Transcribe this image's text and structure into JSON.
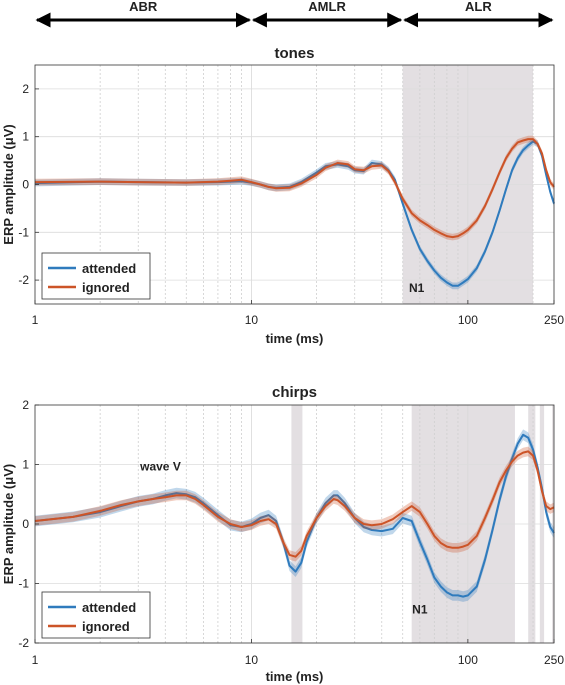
{
  "header": {
    "regions": [
      {
        "label": "ABR",
        "from": 1,
        "to": 10
      },
      {
        "label": "AMLR",
        "from": 10,
        "to": 50
      },
      {
        "label": "ALR",
        "from": 50,
        "to": 250
      }
    ]
  },
  "colors": {
    "attended": "#2f7bbd",
    "ignored": "#cc5428",
    "shade": "#e3dfe2"
  },
  "chart_data": [
    {
      "type": "line",
      "title": "tones",
      "xlabel": "time (ms)",
      "ylabel": "ERP amplitude (μV)",
      "xscale": "log",
      "xlim": [
        1,
        250
      ],
      "ylim": [
        -2.5,
        2.5
      ],
      "xticks": [
        1,
        10,
        100,
        250
      ],
      "yticks": [
        -2,
        -1,
        0,
        1,
        2
      ],
      "legend": "bottom-left",
      "annotations": [
        {
          "text": "N1",
          "x": 58,
          "y": -2.25
        }
      ],
      "shaded_x": [
        [
          50,
          200
        ]
      ],
      "series": [
        {
          "name": "attended",
          "color": "#2f7bbd",
          "ci": 0.07,
          "x": [
            1,
            2,
            3,
            5,
            7,
            8,
            9,
            10,
            11,
            12,
            13,
            15,
            17,
            20,
            22,
            25,
            28,
            30,
            33,
            36,
            40,
            43,
            46,
            50,
            55,
            60,
            65,
            70,
            75,
            80,
            85,
            90,
            95,
            100,
            110,
            120,
            130,
            140,
            150,
            160,
            170,
            180,
            190,
            200,
            210,
            220,
            230,
            240,
            250
          ],
          "y": [
            0.03,
            0.06,
            0.05,
            0.04,
            0.05,
            0.06,
            0.07,
            0.04,
            0.0,
            -0.05,
            -0.07,
            -0.05,
            0.05,
            0.25,
            0.38,
            0.42,
            0.38,
            0.3,
            0.28,
            0.45,
            0.42,
            0.3,
            0.1,
            -0.4,
            -0.95,
            -1.35,
            -1.6,
            -1.8,
            -1.95,
            -2.05,
            -2.12,
            -2.12,
            -2.05,
            -1.98,
            -1.75,
            -1.4,
            -1.0,
            -0.55,
            -0.1,
            0.3,
            0.55,
            0.72,
            0.82,
            0.9,
            0.85,
            0.6,
            0.2,
            -0.15,
            -0.4
          ]
        },
        {
          "name": "ignored",
          "color": "#cc5428",
          "ci": 0.07,
          "x": [
            1,
            2,
            3,
            5,
            7,
            8,
            9,
            10,
            11,
            12,
            13,
            15,
            17,
            20,
            22,
            25,
            28,
            30,
            33,
            36,
            40,
            43,
            46,
            50,
            55,
            60,
            65,
            70,
            75,
            80,
            85,
            90,
            95,
            100,
            110,
            120,
            130,
            140,
            150,
            160,
            170,
            180,
            190,
            200,
            210,
            220,
            230,
            240,
            250
          ],
          "y": [
            0.05,
            0.06,
            0.05,
            0.04,
            0.06,
            0.08,
            0.1,
            0.05,
            0.0,
            -0.05,
            -0.08,
            -0.07,
            0.02,
            0.2,
            0.35,
            0.45,
            0.42,
            0.32,
            0.3,
            0.38,
            0.4,
            0.28,
            0.05,
            -0.3,
            -0.6,
            -0.75,
            -0.85,
            -0.95,
            -1.02,
            -1.08,
            -1.1,
            -1.08,
            -1.02,
            -0.95,
            -0.75,
            -0.45,
            -0.1,
            0.25,
            0.55,
            0.75,
            0.88,
            0.92,
            0.95,
            0.95,
            0.85,
            0.65,
            0.3,
            0.05,
            -0.05
          ]
        }
      ]
    },
    {
      "type": "line",
      "title": "chirps",
      "xlabel": "time (ms)",
      "ylabel": "ERP amplitude (μV)",
      "xscale": "log",
      "xlim": [
        1,
        250
      ],
      "ylim": [
        -2,
        2
      ],
      "xticks": [
        1,
        10,
        100,
        250
      ],
      "yticks": [
        -2,
        -1,
        0,
        1,
        2
      ],
      "legend": "bottom-left",
      "annotations": [
        {
          "text": "wave V",
          "x": 3.8,
          "y": 0.9
        },
        {
          "text": "N1",
          "x": 60,
          "y": -1.5
        }
      ],
      "shaded_x": [
        [
          15.3,
          17.2
        ],
        [
          55,
          165
        ],
        [
          190,
          205
        ],
        [
          215,
          225
        ],
        [
          245,
          250
        ]
      ],
      "series": [
        {
          "name": "attended",
          "color": "#2f7bbd",
          "ci": 0.09,
          "x": [
            1,
            1.5,
            2,
            2.5,
            3,
            3.5,
            4,
            4.5,
            5,
            5.5,
            6,
            7,
            8,
            9,
            10,
            11,
            12,
            13,
            14,
            15,
            16,
            17,
            18,
            20,
            22,
            24,
            25,
            27,
            30,
            33,
            36,
            40,
            45,
            50,
            55,
            60,
            65,
            70,
            75,
            80,
            85,
            90,
            95,
            100,
            110,
            120,
            130,
            140,
            150,
            160,
            170,
            180,
            190,
            200,
            210,
            220,
            230,
            240,
            250
          ],
          "y": [
            0.05,
            0.12,
            0.2,
            0.3,
            0.38,
            0.42,
            0.48,
            0.52,
            0.5,
            0.45,
            0.35,
            0.15,
            -0.02,
            -0.05,
            0.0,
            0.1,
            0.15,
            0.05,
            -0.3,
            -0.7,
            -0.8,
            -0.65,
            -0.3,
            0.1,
            0.35,
            0.48,
            0.48,
            0.35,
            0.1,
            -0.05,
            -0.1,
            -0.12,
            -0.08,
            0.1,
            0.05,
            -0.3,
            -0.6,
            -0.9,
            -1.05,
            -1.15,
            -1.2,
            -1.2,
            -1.22,
            -1.2,
            -1.05,
            -0.6,
            -0.1,
            0.4,
            0.8,
            1.1,
            1.35,
            1.5,
            1.45,
            1.25,
            0.95,
            0.6,
            0.2,
            -0.05,
            -0.15
          ]
        },
        {
          "name": "ignored",
          "color": "#cc5428",
          "ci": 0.08,
          "x": [
            1,
            1.5,
            2,
            2.5,
            3,
            3.5,
            4,
            4.5,
            5,
            5.5,
            6,
            7,
            8,
            9,
            10,
            11,
            12,
            13,
            14,
            15,
            16,
            17,
            18,
            20,
            22,
            24,
            25,
            27,
            30,
            33,
            36,
            40,
            45,
            50,
            55,
            60,
            65,
            70,
            75,
            80,
            85,
            90,
            95,
            100,
            110,
            120,
            130,
            140,
            150,
            160,
            170,
            180,
            190,
            200,
            210,
            220,
            230,
            240,
            250
          ],
          "y": [
            0.05,
            0.12,
            0.22,
            0.32,
            0.38,
            0.42,
            0.45,
            0.48,
            0.48,
            0.42,
            0.32,
            0.12,
            0.0,
            -0.05,
            -0.02,
            0.05,
            0.08,
            0.0,
            -0.3,
            -0.52,
            -0.55,
            -0.45,
            -0.2,
            0.1,
            0.3,
            0.42,
            0.4,
            0.3,
            0.1,
            0.0,
            -0.02,
            0.0,
            0.08,
            0.2,
            0.3,
            0.2,
            0.0,
            -0.2,
            -0.32,
            -0.38,
            -0.4,
            -0.4,
            -0.38,
            -0.35,
            -0.2,
            0.1,
            0.4,
            0.7,
            0.9,
            1.05,
            1.15,
            1.2,
            1.22,
            1.15,
            0.9,
            0.55,
            0.3,
            0.25,
            0.28
          ]
        }
      ]
    }
  ]
}
